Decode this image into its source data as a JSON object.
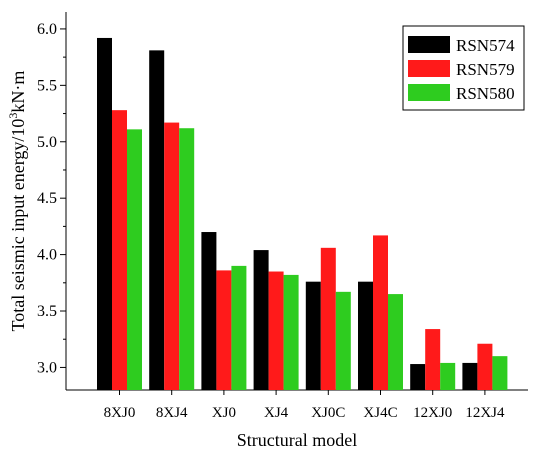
{
  "chart_data": {
    "type": "bar",
    "xlabel": "Structural model",
    "ylabel_main": "Total seismic input energy/10",
    "ylabel_sup": "3",
    "ylabel_unit": "kN·m",
    "categories": [
      "8XJ0",
      "8XJ4",
      "XJ0",
      "XJ4",
      "XJ0C",
      "XJ4C",
      "12XJ0",
      "12XJ4"
    ],
    "ylim": [
      2.8,
      6.15
    ],
    "yticks": [
      "3.0",
      "3.5",
      "4.0",
      "4.5",
      "5.0",
      "5.5",
      "6.0"
    ],
    "legend_position": "top-right",
    "series": [
      {
        "name": "RSN574",
        "color": "#000000",
        "values": [
          5.92,
          5.81,
          4.2,
          4.04,
          3.76,
          3.76,
          3.03,
          3.04
        ]
      },
      {
        "name": "RSN579",
        "color": "#ff1a1a",
        "values": [
          5.28,
          5.17,
          3.86,
          3.85,
          4.06,
          4.17,
          3.34,
          3.21
        ]
      },
      {
        "name": "RSN580",
        "color": "#2ecc1f",
        "values": [
          5.11,
          5.12,
          3.9,
          3.82,
          3.67,
          3.65,
          3.04,
          3.1
        ]
      }
    ]
  }
}
